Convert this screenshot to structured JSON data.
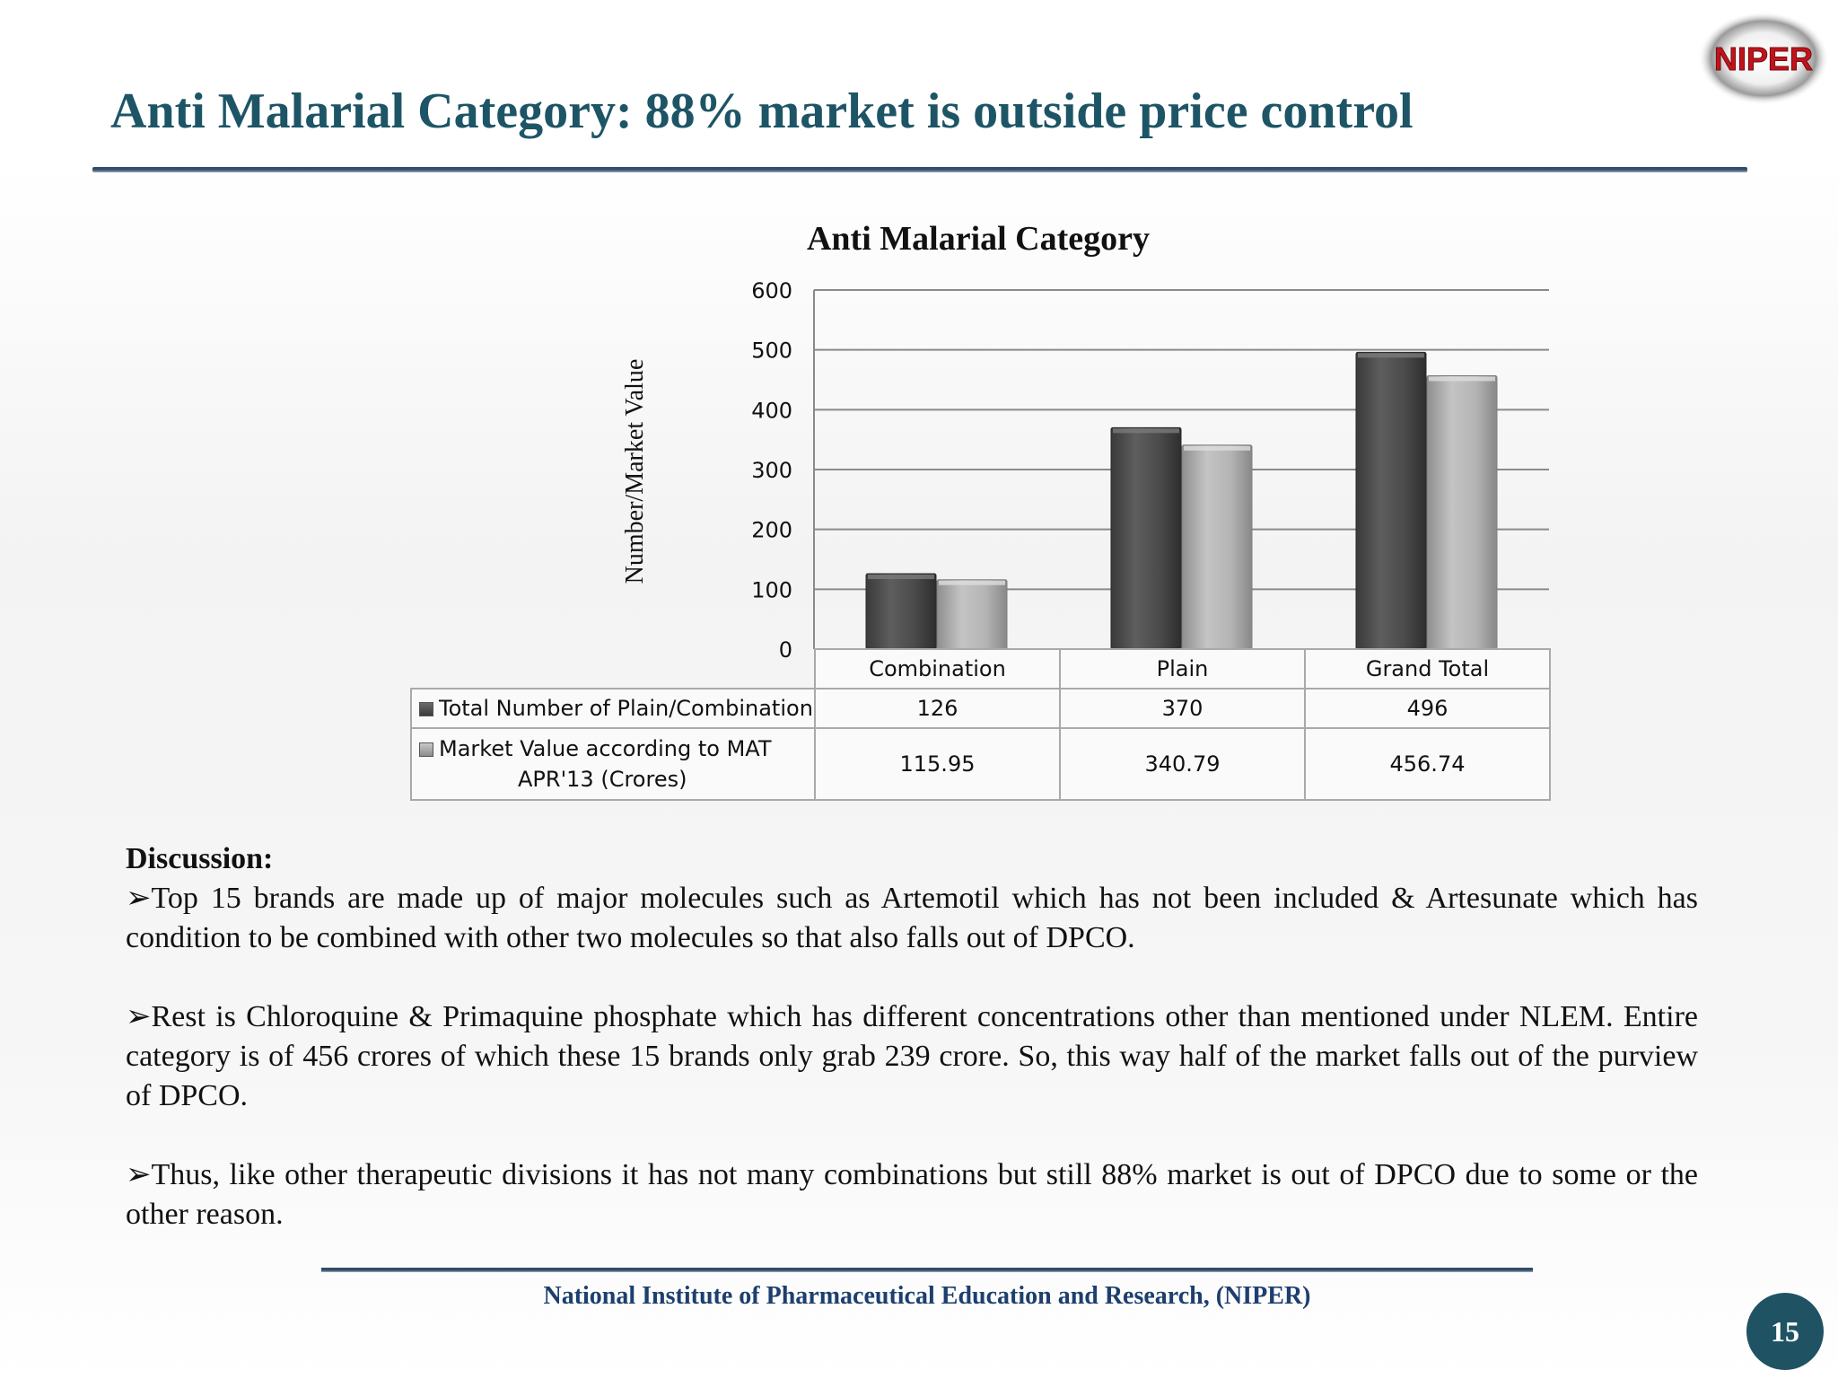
{
  "slide": {
    "title": "Anti Malarial Category: 88% market  is outside price control",
    "logo_text": "NIPER",
    "footer": "National Institute of Pharmaceutical Education and Research, (NIPER)",
    "page_number": "15"
  },
  "chart_data": {
    "type": "bar",
    "title": "Anti Malarial Category",
    "xlabel": "",
    "ylabel": "Number/Market Value",
    "ylim": [
      0,
      600
    ],
    "yticks": [
      "0",
      "100",
      "200",
      "300",
      "400",
      "500",
      "600"
    ],
    "grid": true,
    "legend": "data-table below chart",
    "categories": [
      "Combination",
      "Plain",
      "Grand Total"
    ],
    "series": [
      {
        "name": "Total Number of Plain/Combination",
        "values": [
          126,
          370,
          496
        ],
        "labels": [
          "126",
          "370",
          "496"
        ],
        "color": "#4a4a4a"
      },
      {
        "name": "Market Value according to MAT APR'13  (Crores)",
        "name_line1": "Market Value according to MAT",
        "name_line2": "APR'13  (Crores)",
        "values": [
          115.95,
          340.79,
          456.74
        ],
        "labels": [
          "115.95",
          "340.79",
          "456.74"
        ],
        "color": "#b0b0b0"
      }
    ]
  },
  "discussion": {
    "heading": "Discussion:",
    "points": [
      "➢Top 15 brands are made up of major molecules such as Artemotil which has not been included & Artesunate  which has condition to be combined with other two molecules so that also falls out of DPCO.",
      "➢Rest is Chloroquine & Primaquine phosphate which has different concentrations other than mentioned under NLEM. Entire category is of 456 crores of which these 15 brands only grab 239 crore. So, this way half of the market falls out of the purview of DPCO.",
      "➢Thus, like other therapeutic divisions it has not many combinations but still 88% market  is out of DPCO due to some or the other reason."
    ]
  }
}
